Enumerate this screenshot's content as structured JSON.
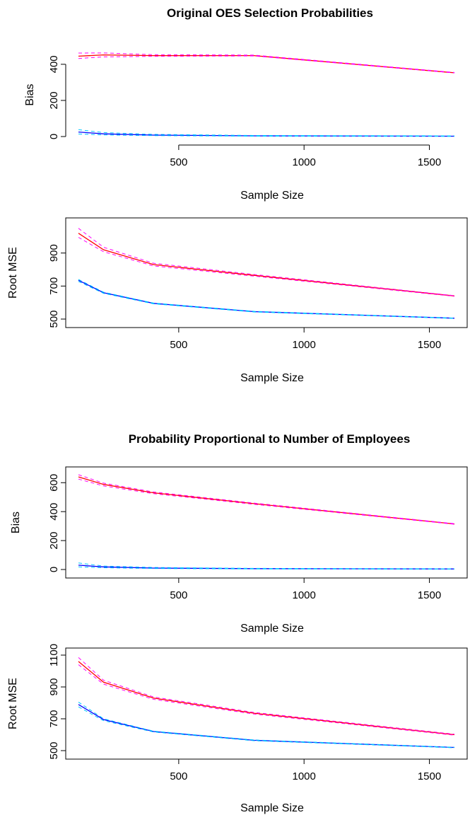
{
  "titles": {
    "top": "Original OES Selection Probabilities",
    "bottom": "Probability Proportional to Number of Employees"
  },
  "colors": {
    "red_solid": "#ff0000",
    "red_dashed": "#ff00ff",
    "blue_solid": "#0000ff",
    "blue_dashed": "#00c8ff"
  },
  "chart_data": [
    {
      "type": "line",
      "title": "Original OES Selection Probabilities",
      "xlabel": "Sample Size",
      "ylabel": "Bias",
      "xlim": [
        100,
        1600
      ],
      "ylim": [
        0,
        470
      ],
      "xticks": [
        500,
        1000,
        1500
      ],
      "yticks": [
        0,
        200,
        400
      ],
      "x": [
        100,
        200,
        400,
        800,
        1600
      ],
      "series": [
        {
          "values": [
            445,
            452,
            448,
            448,
            353
          ],
          "color": "#ff0000",
          "dash": false
        },
        {
          "values": [
            462,
            463,
            453,
            451,
            355
          ],
          "color": "#ff00ff",
          "dash": true
        },
        {
          "values": [
            432,
            441,
            444,
            446,
            352
          ],
          "color": "#ff00ff",
          "dash": true
        },
        {
          "values": [
            25,
            15,
            8,
            4,
            2
          ],
          "color": "#0000ff",
          "dash": false
        },
        {
          "values": [
            38,
            22,
            12,
            6,
            4
          ],
          "color": "#00c8ff",
          "dash": true
        },
        {
          "values": [
            14,
            9,
            5,
            2,
            1
          ],
          "color": "#00c8ff",
          "dash": true
        }
      ]
    },
    {
      "type": "line",
      "title": "",
      "xlabel": "Sample Size",
      "ylabel": "Root MSE",
      "xlim": [
        100,
        1600
      ],
      "ylim": [
        500,
        1070
      ],
      "xticks": [
        500,
        1000,
        1500
      ],
      "yticks": [
        500,
        700,
        900
      ],
      "x": [
        100,
        200,
        400,
        800,
        1600
      ],
      "series": [
        {
          "values": [
            1020,
            920,
            830,
            765,
            640
          ],
          "color": "#ff0000",
          "dash": false
        },
        {
          "values": [
            1050,
            935,
            838,
            770,
            642
          ],
          "color": "#ff00ff",
          "dash": true
        },
        {
          "values": [
            995,
            908,
            822,
            760,
            638
          ],
          "color": "#ff00ff",
          "dash": true
        },
        {
          "values": [
            735,
            660,
            595,
            545,
            505
          ],
          "color": "#0000ff",
          "dash": false
        },
        {
          "values": [
            740,
            663,
            597,
            547,
            506
          ],
          "color": "#00c8ff",
          "dash": true
        },
        {
          "values": [
            728,
            656,
            592,
            543,
            504
          ],
          "color": "#00c8ff",
          "dash": true
        }
      ]
    },
    {
      "type": "line",
      "title": "Probability Proportional to Number of Employees",
      "xlabel": "Sample Size",
      "ylabel": "Bias",
      "xlim": [
        100,
        1600
      ],
      "ylim": [
        0,
        660
      ],
      "xticks": [
        500,
        1000,
        1500
      ],
      "yticks": [
        0,
        200,
        400,
        600
      ],
      "x": [
        100,
        200,
        400,
        800,
        1600
      ],
      "series": [
        {
          "values": [
            640,
            588,
            530,
            455,
            315
          ],
          "color": "#ff0000",
          "dash": false
        },
        {
          "values": [
            655,
            597,
            536,
            459,
            317
          ],
          "color": "#ff00ff",
          "dash": true
        },
        {
          "values": [
            625,
            578,
            524,
            451,
            313
          ],
          "color": "#ff00ff",
          "dash": true
        },
        {
          "values": [
            30,
            18,
            10,
            6,
            4
          ],
          "color": "#0000ff",
          "dash": false
        },
        {
          "values": [
            45,
            24,
            14,
            8,
            5
          ],
          "color": "#00c8ff",
          "dash": true
        },
        {
          "values": [
            18,
            12,
            7,
            4,
            3
          ],
          "color": "#00c8ff",
          "dash": true
        }
      ]
    },
    {
      "type": "line",
      "title": "",
      "xlabel": "Sample Size",
      "ylabel": "Root MSE",
      "xlim": [
        100,
        1600
      ],
      "ylim": [
        500,
        1100
      ],
      "xticks": [
        500,
        1000,
        1500
      ],
      "yticks": [
        500,
        700,
        900,
        1100
      ],
      "x": [
        100,
        200,
        400,
        800,
        1600
      ],
      "series": [
        {
          "values": [
            1060,
            930,
            830,
            735,
            600
          ],
          "color": "#ff0000",
          "dash": false
        },
        {
          "values": [
            1085,
            942,
            837,
            740,
            603
          ],
          "color": "#ff00ff",
          "dash": true
        },
        {
          "values": [
            1040,
            918,
            822,
            730,
            597
          ],
          "color": "#ff00ff",
          "dash": true
        },
        {
          "values": [
            790,
            695,
            620,
            565,
            520
          ],
          "color": "#0000ff",
          "dash": false
        },
        {
          "values": [
            805,
            700,
            622,
            567,
            521
          ],
          "color": "#00c8ff",
          "dash": true
        },
        {
          "values": [
            775,
            688,
            617,
            562,
            518
          ],
          "color": "#00c8ff",
          "dash": true
        }
      ]
    }
  ]
}
